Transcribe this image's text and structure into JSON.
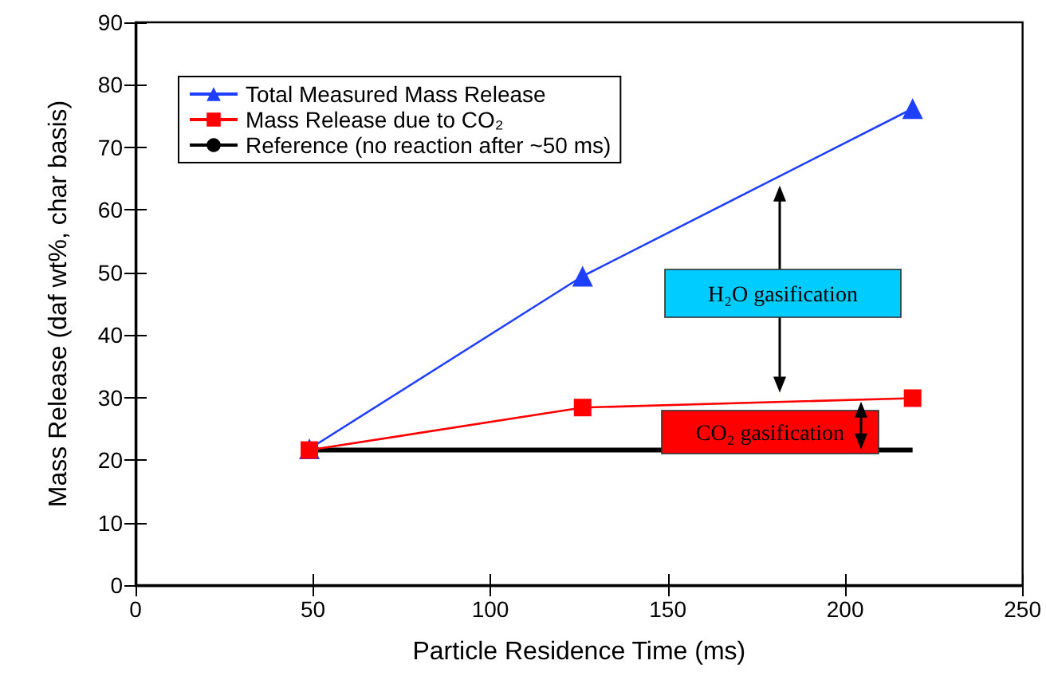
{
  "chart_data": {
    "type": "line",
    "xlabel": "Particle Residence Time (ms)",
    "ylabel": "Mass Release (daf wt%, char basis)",
    "xlim": [
      0,
      250
    ],
    "xticks": [
      0,
      50,
      100,
      150,
      200,
      250
    ],
    "ylim": [
      0,
      90
    ],
    "yticks": [
      0,
      10,
      20,
      30,
      40,
      50,
      60,
      70,
      80,
      90
    ],
    "grid": false,
    "legend": "top left",
    "series": [
      {
        "name": "Total Measured Mass Release",
        "color": "#1f3fff",
        "marker": "triangle",
        "x": [
          49,
          126,
          219
        ],
        "values": [
          21.8,
          49.4,
          76.2
        ]
      },
      {
        "name": "Mass Release due to CO₂",
        "color": "#ff0000",
        "marker": "square",
        "x": [
          49,
          126,
          219
        ],
        "values": [
          21.6,
          28.4,
          29.9
        ]
      },
      {
        "name": "Reference (no reaction after ~50 ms)",
        "color": "#000000",
        "marker": "none",
        "x": [
          49,
          219
        ],
        "values": [
          21.6,
          21.6
        ]
      }
    ],
    "annotations": [
      "H₂O gasification",
      "CO₂ gasification"
    ]
  }
}
